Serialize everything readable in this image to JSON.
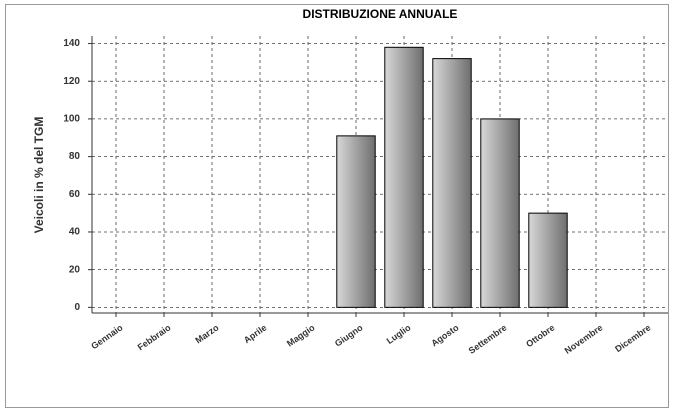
{
  "chart_data": {
    "type": "bar",
    "title": "DISTRIBUZIONE ANNUALE",
    "y_label": "Veicoli in % del TGM",
    "categories": [
      "Gennaio",
      "Febbraio",
      "Marzo",
      "Aprile",
      "Maggio",
      "Giugno",
      "Luglio",
      "Agosto",
      "Settembre",
      "Ottobre",
      "Novembre",
      "Dicembre"
    ],
    "values": [
      0,
      0,
      0,
      0,
      0,
      91,
      138,
      132,
      100,
      50,
      0,
      0
    ],
    "ylim": [
      -3,
      144
    ],
    "yticks": [
      0,
      20,
      40,
      60,
      80,
      100,
      120,
      140
    ],
    "grid": true
  }
}
